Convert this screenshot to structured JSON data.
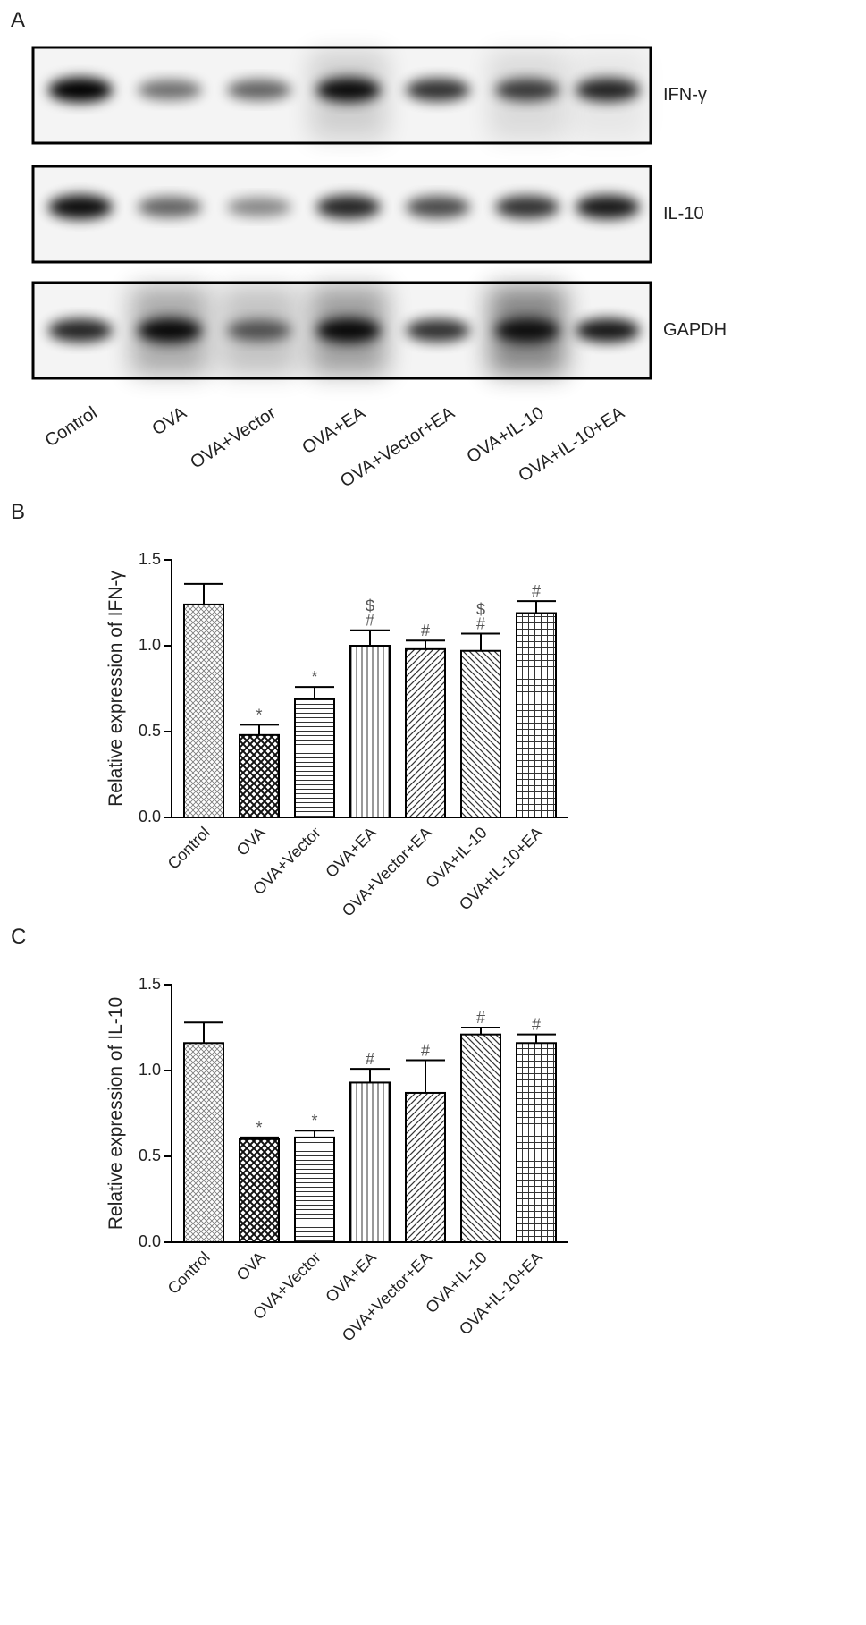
{
  "blot": {
    "label": "A",
    "rows": [
      "IFN-γ",
      "IL-10",
      "GAPDH"
    ],
    "lanes": [
      "Control",
      "OVA",
      "OVA+Vector",
      "OVA+EA",
      "OVA+Vector+EA",
      "OVA+IL-10",
      "OVA+IL-10+EA"
    ]
  },
  "chart_data": [
    {
      "type": "bar",
      "panel": "B",
      "ylabel": "Relative expression of IFN-γ",
      "categories": [
        "Control",
        "OVA",
        "OVA+Vector",
        "OVA+EA",
        "OVA+Vector+EA",
        "OVA+IL-10",
        "OVA+IL-10+EA"
      ],
      "values": [
        1.24,
        0.48,
        0.69,
        1.0,
        0.98,
        0.97,
        1.19
      ],
      "errors": [
        0.12,
        0.06,
        0.07,
        0.09,
        0.05,
        0.1,
        0.07
      ],
      "annotations": [
        null,
        [
          "*"
        ],
        [
          "*"
        ],
        [
          "$",
          "#"
        ],
        [
          "#"
        ],
        [
          "$",
          "#"
        ],
        [
          "#"
        ]
      ],
      "ylim": [
        0,
        1.5
      ],
      "yticks": [
        {
          "value": 0,
          "label": "0.0"
        },
        {
          "value": 0.5,
          "label": "0.5"
        },
        {
          "value": 1,
          "label": "1.0"
        },
        {
          "value": 1.5,
          "label": "1.5"
        }
      ]
    },
    {
      "type": "bar",
      "panel": "C",
      "ylabel": "Relative expression of IL-10",
      "categories": [
        "Control",
        "OVA",
        "OVA+Vector",
        "OVA+EA",
        "OVA+Vector+EA",
        "OVA+IL-10",
        "OVA+IL-10+EA"
      ],
      "values": [
        1.16,
        0.6,
        0.61,
        0.93,
        0.87,
        1.21,
        1.16
      ],
      "errors": [
        0.12,
        0.01,
        0.04,
        0.08,
        0.19,
        0.04,
        0.05
      ],
      "annotations": [
        null,
        [
          "*"
        ],
        [
          "*"
        ],
        [
          "#"
        ],
        [
          "#"
        ],
        [
          "#"
        ],
        [
          "#"
        ]
      ],
      "ylim": [
        0,
        1.5
      ],
      "yticks": [
        {
          "value": 0,
          "label": "0.0"
        },
        {
          "value": 0.5,
          "label": "0.5"
        },
        {
          "value": 1,
          "label": "1.0"
        },
        {
          "value": 1.5,
          "label": "1.5"
        }
      ]
    }
  ]
}
